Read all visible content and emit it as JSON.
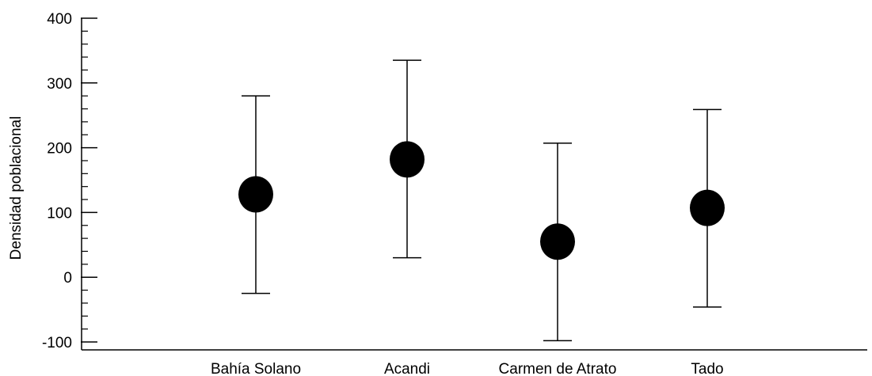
{
  "chart_data": {
    "type": "scatter",
    "subtype": "mean-with-error-bars",
    "title": "",
    "xlabel": "",
    "ylabel": "Densidad poblacional",
    "ylim": [
      -100,
      400
    ],
    "yticks": [
      -100,
      0,
      100,
      200,
      300,
      400
    ],
    "ytick_labels": [
      "-100",
      "0",
      "100",
      "200",
      "300",
      "400"
    ],
    "categories": [
      "Bahía Solano",
      "Acandi",
      "Carmen de Atrato",
      "Tado"
    ],
    "values": [
      128,
      182,
      55,
      107
    ],
    "error_low": [
      -25,
      30,
      -98,
      -46
    ],
    "error_high": [
      280,
      335,
      207,
      259
    ],
    "grid": false,
    "legend": "none",
    "colors": {
      "marker": "#000000",
      "line": "#000000"
    }
  }
}
